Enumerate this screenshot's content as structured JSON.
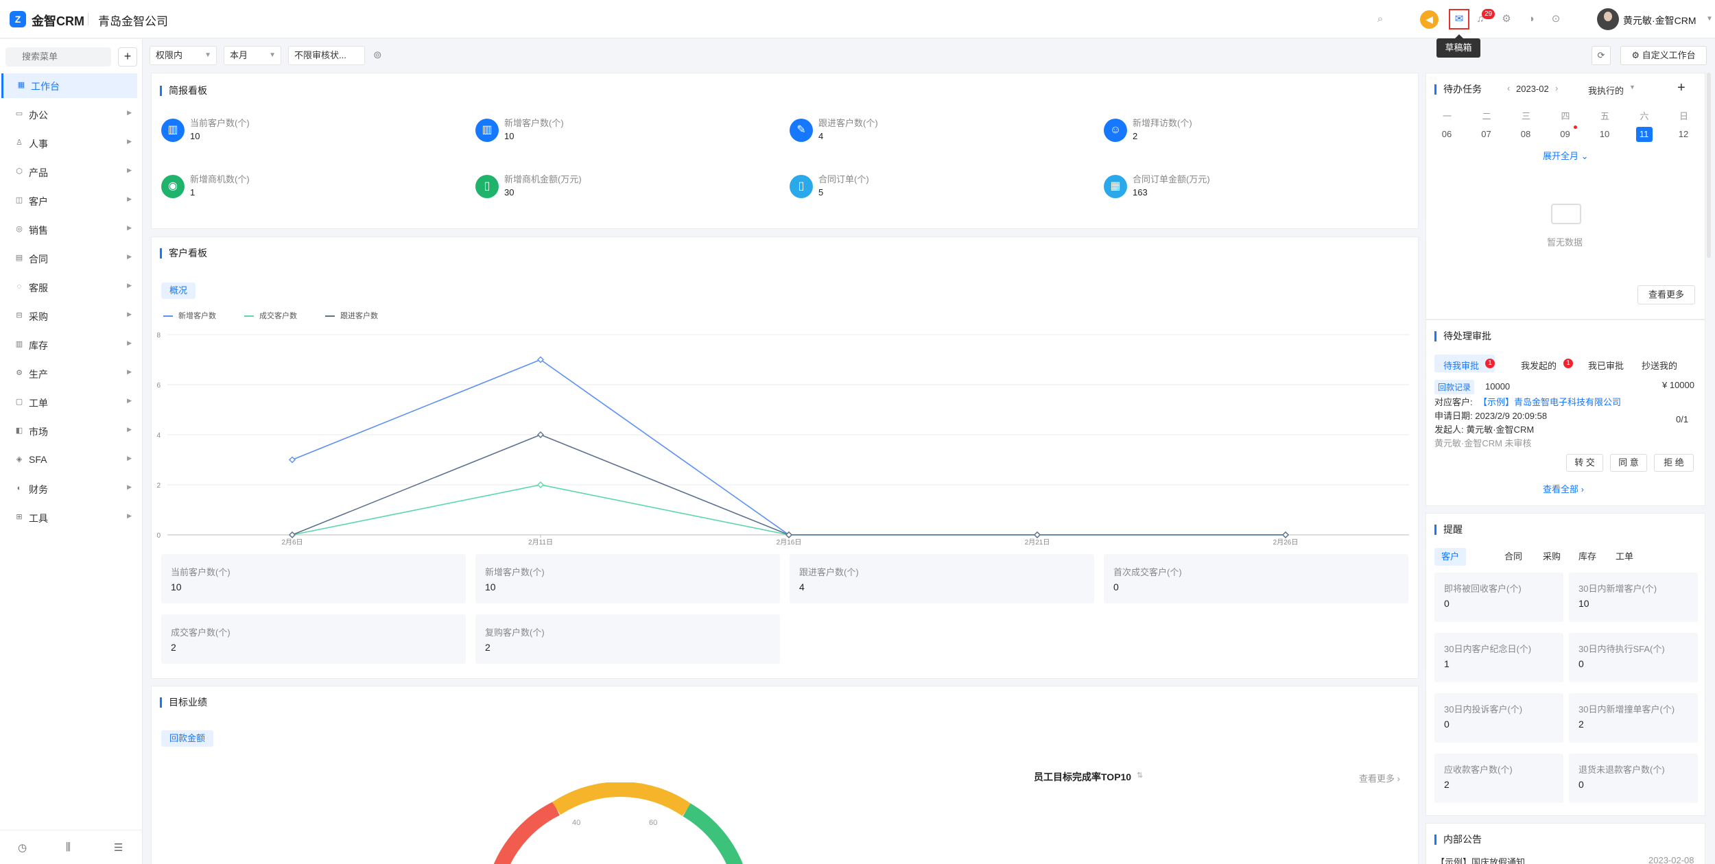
{
  "app": {
    "logo_mark": "Z",
    "name": "金智CRM",
    "company": "青岛金智公司",
    "tooltip": "草稿箱",
    "notification_count": "29",
    "user": "黄元敏·金智CRM"
  },
  "sidebar": {
    "search_placeholder": "搜索菜单",
    "add": "+",
    "items": [
      {
        "icon": "dashboard-icon",
        "glyph": "▦",
        "label": "工作台",
        "active": true
      },
      {
        "icon": "office-icon",
        "glyph": "▭",
        "label": "办公"
      },
      {
        "icon": "people-icon",
        "glyph": "♙",
        "label": "人事"
      },
      {
        "icon": "product-icon",
        "glyph": "⬡",
        "label": "产品"
      },
      {
        "icon": "customer-icon",
        "glyph": "◫",
        "label": "客户"
      },
      {
        "icon": "sales-icon",
        "glyph": "◎",
        "label": "销售"
      },
      {
        "icon": "contract-icon",
        "glyph": "▤",
        "label": "合同"
      },
      {
        "icon": "service-icon",
        "glyph": "◌",
        "label": "客服"
      },
      {
        "icon": "purchase-icon",
        "glyph": "⊟",
        "label": "采购"
      },
      {
        "icon": "inventory-icon",
        "glyph": "▥",
        "label": "库存"
      },
      {
        "icon": "production-icon",
        "glyph": "⚙",
        "label": "生产"
      },
      {
        "icon": "ticket-icon",
        "glyph": "▢",
        "label": "工单"
      },
      {
        "icon": "market-icon",
        "glyph": "◧",
        "label": "市场"
      },
      {
        "icon": "sfa-icon",
        "glyph": "◈",
        "label": "SFA"
      },
      {
        "icon": "finance-icon",
        "glyph": "◐",
        "label": "财务"
      },
      {
        "icon": "tools-icon",
        "glyph": "⊞",
        "label": "工具"
      }
    ]
  },
  "filters": {
    "scope": "权限内",
    "period": "本月",
    "audit": "不限审核状..."
  },
  "toolbar": {
    "customize": "自定义工作台"
  },
  "brief": {
    "title": "简报看板",
    "stats": [
      {
        "label": "当前客户数(个)",
        "value": "10",
        "color": "#1677ff",
        "glyph": "▥"
      },
      {
        "label": "新增客户数(个)",
        "value": "10",
        "color": "#1677ff",
        "glyph": "▥"
      },
      {
        "label": "跟进客户数(个)",
        "value": "4",
        "color": "#1677ff",
        "glyph": "✎"
      },
      {
        "label": "新增拜访数(个)",
        "value": "2",
        "color": "#1677ff",
        "glyph": "☺"
      },
      {
        "label": "新增商机数(个)",
        "value": "1",
        "color": "#20b36b",
        "glyph": "◉"
      },
      {
        "label": "新增商机金额(万元)",
        "value": "30",
        "color": "#20b36b",
        "glyph": "▯"
      },
      {
        "label": "合同订单(个)",
        "value": "5",
        "color": "#29a9ea",
        "glyph": "▯"
      },
      {
        "label": "合同订单金额(万元)",
        "value": "163",
        "color": "#29a9ea",
        "glyph": "▦"
      }
    ]
  },
  "customer": {
    "title": "客户看板",
    "tab": "概况",
    "boxes": [
      {
        "label": "当前客户数(个)",
        "value": "10"
      },
      {
        "label": "新增客户数(个)",
        "value": "10"
      },
      {
        "label": "跟进客户数(个)",
        "value": "4"
      },
      {
        "label": "首次成交客户(个)",
        "value": "0"
      },
      {
        "label": "成交客户数(个)",
        "value": "2"
      },
      {
        "label": "复购客户数(个)",
        "value": "2"
      }
    ]
  },
  "chart_data": {
    "type": "line",
    "categories": [
      "2月6日",
      "2月11日",
      "2月16日",
      "2月21日",
      "2月26日"
    ],
    "series": [
      {
        "name": "新增客户数",
        "color": "#5b8ff9",
        "values": [
          3,
          7,
          0,
          0,
          0
        ]
      },
      {
        "name": "成交客户数",
        "color": "#5ad8a6",
        "values": [
          0,
          2,
          0,
          0,
          0
        ]
      },
      {
        "name": "跟进客户数",
        "color": "#5d7092",
        "values": [
          0,
          4,
          0,
          0,
          0
        ]
      }
    ],
    "ylim": [
      0,
      8
    ],
    "yticks": [
      "0",
      "2",
      "4",
      "6",
      "8"
    ],
    "legend": "top-left"
  },
  "target": {
    "title": "目标业绩",
    "tab": "回款金额",
    "top_title": "员工目标完成率TOP10",
    "more": "查看更多 ›",
    "gauge_ticks": [
      "40",
      "60"
    ]
  },
  "todo": {
    "title": "待办任务",
    "month": "2023-02",
    "owner": "我执行的",
    "weekdays": [
      "一",
      "二",
      "三",
      "四",
      "五",
      "六",
      "日"
    ],
    "days": [
      "06",
      "07",
      "08",
      "09",
      "10",
      "11",
      "12"
    ],
    "expand": "展开全月",
    "empty": "暂无数据",
    "more": "查看更多"
  },
  "approval": {
    "title": "待处理审批",
    "tabs": [
      "待我审批",
      "我发起的",
      "我已审批",
      "抄送我的"
    ],
    "badge": "1",
    "record_tag": "回款记录",
    "record_amount": "10000",
    "amount": "¥ 10000",
    "customer_label": "对应客户:",
    "customer": "【示例】青岛金智电子科技有限公司",
    "date": "申请日期: 2023/2/9 20:09:58",
    "ratio": "0/1",
    "initiator": "发起人: 黄元敏·金智CRM",
    "status": "黄元敏·金智CRM 未审核",
    "btns": [
      "转 交",
      "同 意",
      "拒 绝"
    ],
    "view_all": "查看全部 ›"
  },
  "reminder": {
    "title": "提醒",
    "tabs": [
      "客户",
      "合同",
      "采购",
      "库存",
      "工单"
    ],
    "boxes": [
      {
        "label": "即将被回收客户(个)",
        "value": "0"
      },
      {
        "label": "30日内新增客户(个)",
        "value": "10"
      },
      {
        "label": "30日内客户纪念日(个)",
        "value": "1"
      },
      {
        "label": "30日内待执行SFA(个)",
        "value": "0"
      },
      {
        "label": "30日内投诉客户(个)",
        "value": "0"
      },
      {
        "label": "30日内新增撞单客户(个)",
        "value": "2"
      },
      {
        "label": "应收款客户数(个)",
        "value": "2"
      },
      {
        "label": "退货未退款客户数(个)",
        "value": "0"
      }
    ]
  },
  "notice": {
    "title": "内部公告",
    "item": "【示例】国庆放假通知",
    "date": "2023-02-08"
  }
}
